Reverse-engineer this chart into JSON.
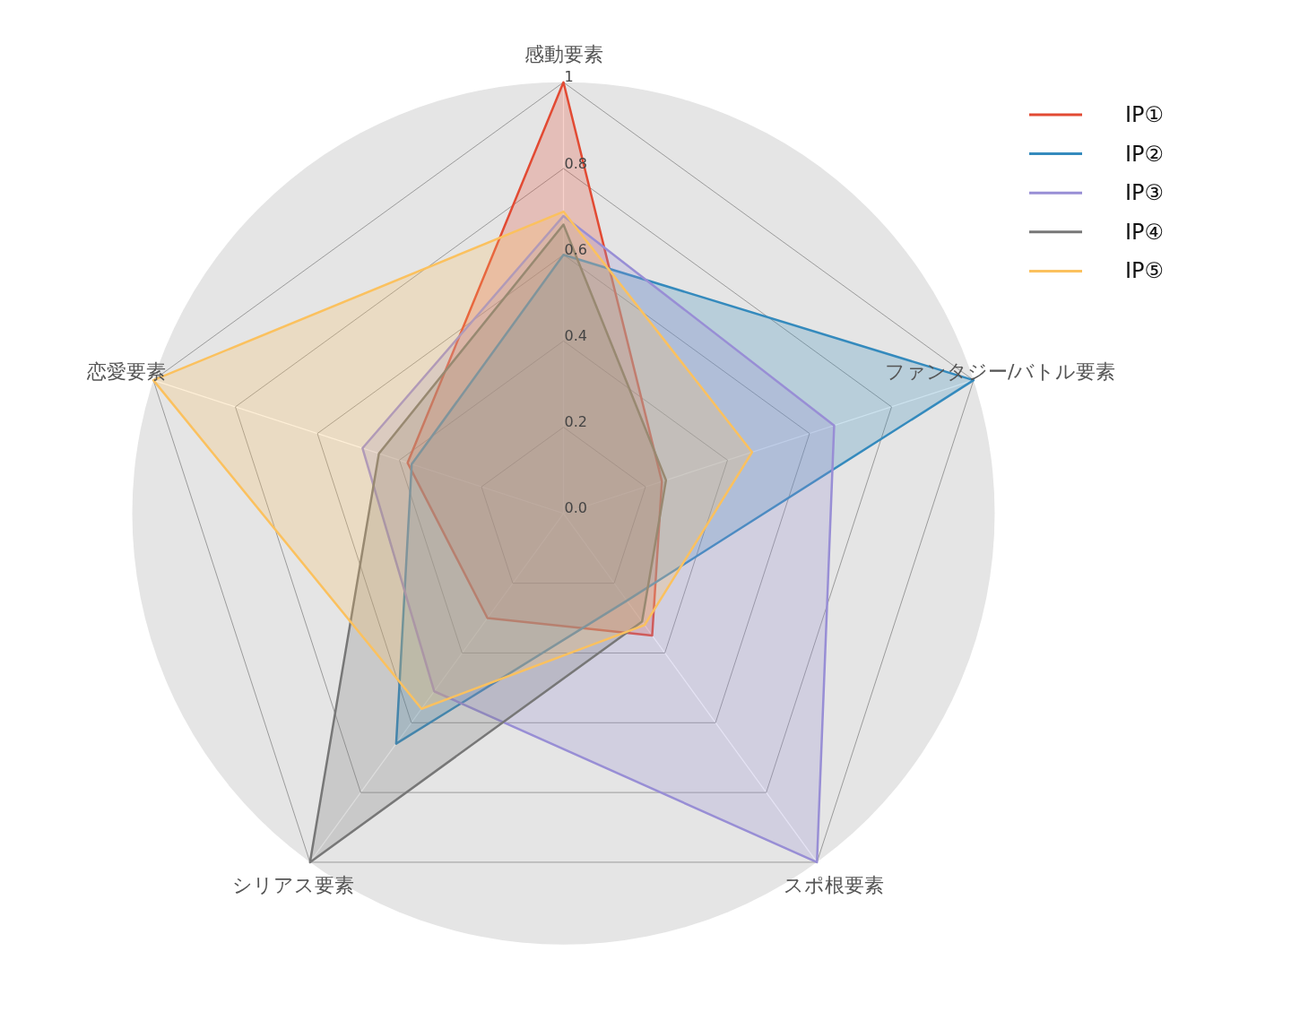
{
  "chart_data": {
    "type": "radar",
    "categories": [
      "感動要素",
      "ファンタジー/バトル要素",
      "スポ根要素",
      "シリアス要素",
      "恋愛要素"
    ],
    "series": [
      {
        "name": "IP①",
        "color": "#e24a33",
        "values": [
          1.0,
          0.24,
          0.35,
          0.3,
          0.38
        ]
      },
      {
        "name": "IP②",
        "color": "#348abd",
        "values": [
          0.6,
          1.0,
          0.25,
          0.66,
          0.37
        ]
      },
      {
        "name": "IP③",
        "color": "#988ed5",
        "values": [
          0.69,
          0.66,
          1.0,
          0.51,
          0.49
        ]
      },
      {
        "name": "IP④",
        "color": "#777777",
        "values": [
          0.67,
          0.25,
          0.31,
          1.0,
          0.45
        ]
      },
      {
        "name": "IP⑤",
        "color": "#fbc15e",
        "values": [
          0.7,
          0.46,
          0.32,
          0.56,
          1.0
        ]
      }
    ],
    "ylim": [
      0,
      1
    ],
    "yticks": [
      {
        "value": 0,
        "label": "0.0"
      },
      {
        "value": 0.2,
        "label": "0.2"
      },
      {
        "value": 0.4,
        "label": "0.4"
      },
      {
        "value": 0.6,
        "label": "0.6"
      },
      {
        "value": 0.8,
        "label": "0.8"
      },
      {
        "value": 1,
        "label": "1"
      }
    ],
    "grid": true,
    "legend": "top right"
  }
}
